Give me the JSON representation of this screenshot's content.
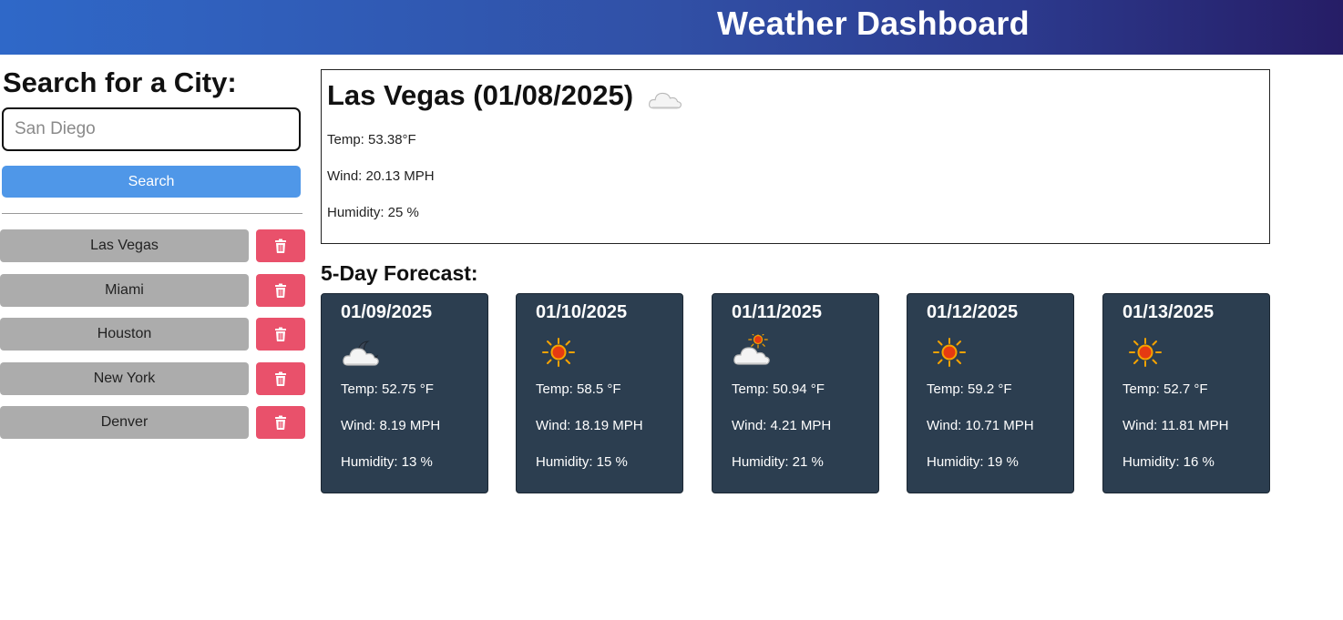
{
  "header": {
    "title": "Weather Dashboard"
  },
  "sidebar": {
    "title": "Search for a City:",
    "search_placeholder": "San Diego",
    "search_value": "",
    "search_button": "Search",
    "history": [
      {
        "city": "Las Vegas"
      },
      {
        "city": "Miami"
      },
      {
        "city": "Houston"
      },
      {
        "city": "New York"
      },
      {
        "city": "Denver"
      }
    ]
  },
  "current": {
    "heading": "Las Vegas (01/08/2025)",
    "icon": "cloud-icon",
    "temp": "Temp: 53.38°F",
    "wind": "Wind: 20.13 MPH",
    "humidity": "Humidity: 25 %"
  },
  "forecast": {
    "title": "5-Day Forecast:",
    "days": [
      {
        "date": "01/09/2025",
        "icon": "cloud-moon-icon",
        "temp": "Temp: 52.75 °F",
        "wind": "Wind: 8.19 MPH",
        "humidity": "Humidity: 13 %"
      },
      {
        "date": "01/10/2025",
        "icon": "sun-icon",
        "temp": "Temp: 58.5 °F",
        "wind": "Wind: 18.19 MPH",
        "humidity": "Humidity: 15 %"
      },
      {
        "date": "01/11/2025",
        "icon": "cloud-sun-icon",
        "temp": "Temp: 50.94 °F",
        "wind": "Wind: 4.21 MPH",
        "humidity": "Humidity: 21 %"
      },
      {
        "date": "01/12/2025",
        "icon": "sun-icon",
        "temp": "Temp: 59.2 °F",
        "wind": "Wind: 10.71 MPH",
        "humidity": "Humidity: 19 %"
      },
      {
        "date": "01/13/2025",
        "icon": "sun-icon",
        "temp": "Temp: 52.7 °F",
        "wind": "Wind: 11.81 MPH",
        "humidity": "Humidity: 16 %"
      }
    ]
  },
  "colors": {
    "header_start": "#2f68c8",
    "header_end": "#261d66",
    "search_button": "#4f97e8",
    "history_button": "#acacac",
    "delete_button": "#e9516b",
    "forecast_card": "#2c3e50"
  }
}
